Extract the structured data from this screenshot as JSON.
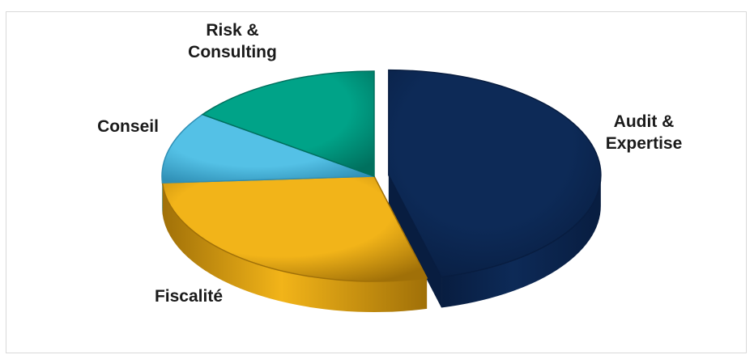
{
  "chart_data": {
    "type": "pie",
    "style": "3d-exploded",
    "title": "",
    "series": [
      {
        "labels": [
          "Audit & Expertise",
          "Fiscalité",
          "Conseil",
          "Risk & Consulting"
        ],
        "values": [
          46,
          28,
          11,
          15
        ],
        "colors": [
          "#0d2a57",
          "#f2b419",
          "#54c1e6",
          "#00a388"
        ],
        "side_colors": [
          "#081d40",
          "#a07008",
          "#2f8fb5",
          "#00705e"
        ],
        "exploded": [
          "Audit & Expertise"
        ]
      }
    ],
    "label_lines": [
      [
        "Audit &",
        "Expertise"
      ],
      [
        "Fiscalité"
      ],
      [
        "Conseil"
      ],
      [
        "Risk &",
        "Consulting"
      ]
    ],
    "legend": "none"
  }
}
